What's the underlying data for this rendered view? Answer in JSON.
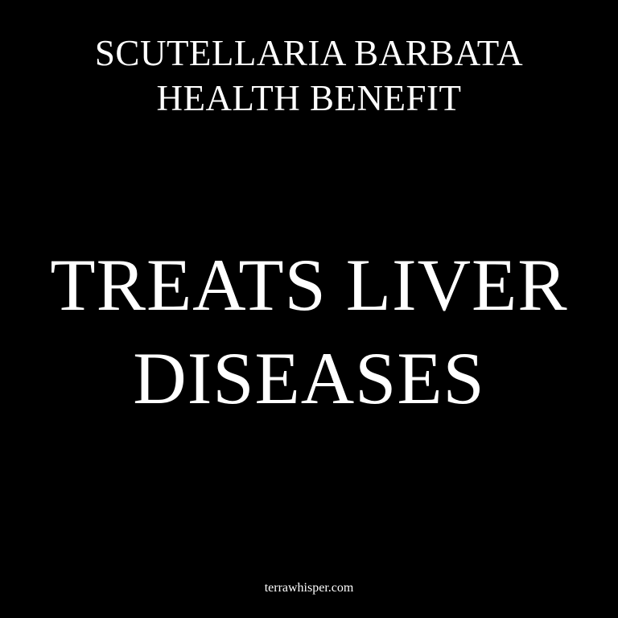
{
  "header": {
    "line1": "SCUTELLARIA BARBATA",
    "line2": "HEALTH BENEFIT"
  },
  "headline": {
    "line1": "TREATS LIVER",
    "line2": "DISEASES"
  },
  "footer": {
    "site": "terrawhisper.com"
  },
  "colors": {
    "background": "#000000",
    "text": "#ffffff"
  }
}
